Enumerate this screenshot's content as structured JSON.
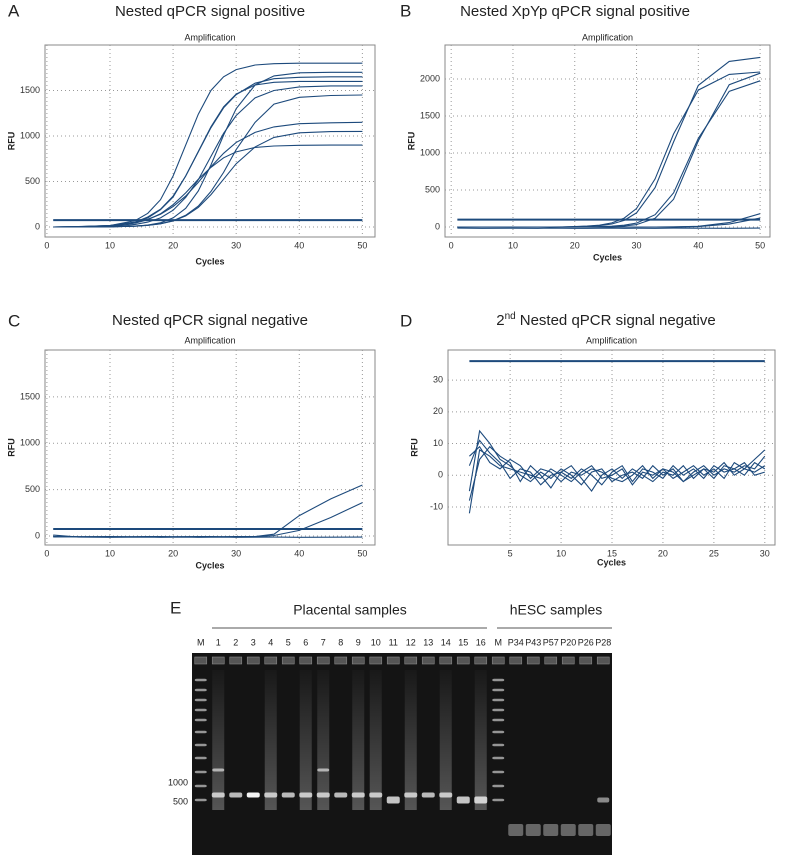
{
  "chart_data": [
    {
      "type": "line",
      "panel": "A",
      "title": "Nested qPCR signal positive",
      "subtitle": "Amplification",
      "x_label": "Cycles",
      "y_label": "RFU",
      "color": "#1d4a7c",
      "grid": true,
      "xlim": [
        -0.3,
        52
      ],
      "ylim": [
        -110,
        2000
      ],
      "xticks": [
        0,
        10,
        20,
        30,
        40,
        50
      ],
      "yticks": [
        0,
        500,
        1000,
        1500
      ],
      "threshold": 75,
      "x": [
        1,
        5,
        10,
        14,
        16,
        18,
        20,
        22,
        24,
        26,
        28,
        30,
        33,
        36,
        40,
        45,
        50
      ],
      "series": [
        {
          "values": [
            0,
            2,
            15,
            70,
            150,
            300,
            560,
            900,
            1240,
            1500,
            1650,
            1730,
            1780,
            1795,
            1800,
            1800,
            1800
          ]
        },
        {
          "values": [
            0,
            3,
            15,
            55,
            110,
            195,
            340,
            560,
            825,
            1090,
            1310,
            1455,
            1580,
            1630,
            1645,
            1650,
            1650
          ]
        },
        {
          "values": [
            0,
            1,
            7,
            28,
            54,
            100,
            185,
            325,
            520,
            775,
            1030,
            1225,
            1420,
            1500,
            1540,
            1550,
            1550
          ]
        },
        {
          "values": [
            0,
            4,
            15,
            50,
            85,
            140,
            225,
            340,
            490,
            660,
            810,
            930,
            1040,
            1100,
            1135,
            1145,
            1150
          ]
        },
        {
          "values": [
            0,
            2,
            12,
            43,
            80,
            145,
            245,
            375,
            525,
            655,
            760,
            825,
            875,
            890,
            898,
            900,
            900
          ]
        },
        {
          "values": [
            0,
            0,
            2,
            9,
            21,
            46,
            100,
            205,
            395,
            680,
            1010,
            1300,
            1560,
            1660,
            1695,
            1700,
            1700
          ]
        },
        {
          "values": [
            0,
            0,
            2,
            10,
            19,
            36,
            69,
            128,
            230,
            390,
            600,
            850,
            1150,
            1350,
            1425,
            1445,
            1450
          ]
        },
        {
          "values": [
            0,
            0,
            3,
            10,
            19,
            35,
            66,
            122,
            215,
            355,
            525,
            695,
            880,
            985,
            1035,
            1048,
            1050
          ]
        },
        {
          "values": [
            0,
            2,
            10,
            50,
            100,
            190,
            330,
            560,
            830,
            1100,
            1320,
            1460,
            1560,
            1590,
            1600,
            1600,
            1600
          ]
        }
      ]
    },
    {
      "type": "line",
      "panel": "B",
      "title": "Nested XpYp qPCR signal positive",
      "subtitle": "Amplification",
      "x_label": "Cycles",
      "y_label": "RFU",
      "color": "#1d4a7c",
      "grid": true,
      "xlim": [
        -1,
        51.6
      ],
      "ylim": [
        -135,
        2460
      ],
      "xticks": [
        0,
        10,
        20,
        30,
        40,
        50
      ],
      "yticks": [
        0,
        500,
        1000,
        1500,
        2000
      ],
      "threshold": 100,
      "x": [
        1,
        5,
        10,
        14,
        16,
        18,
        20,
        22,
        24,
        26,
        28,
        30,
        33,
        36,
        40,
        45,
        50
      ],
      "series": [
        {
          "values": [
            0,
            0,
            0,
            0,
            0,
            2,
            5,
            12,
            25,
            56,
            120,
            250,
            650,
            1258,
            1850,
            2062,
            2095
          ]
        },
        {
          "values": [
            0,
            0,
            0,
            0,
            0,
            0,
            4,
            9,
            19,
            41,
            90,
            191,
            532,
            1150,
            1914,
            2239,
            2292
          ]
        },
        {
          "values": [
            0,
            0,
            0,
            0,
            0,
            0,
            0,
            0,
            5,
            11,
            24,
            53,
            166,
            462,
            1198,
            1834,
            1976
          ]
        },
        {
          "values": [
            0,
            0,
            0,
            0,
            0,
            0,
            0,
            0,
            0,
            6,
            14,
            33,
            118,
            376,
            1164,
            1924,
            2079
          ]
        },
        {
          "values": [
            0,
            0,
            0,
            0,
            0,
            0,
            0,
            0,
            0,
            0,
            0,
            0,
            0,
            2,
            10,
            60,
            180
          ]
        },
        {
          "values": [
            0,
            0,
            0,
            0,
            0,
            0,
            0,
            0,
            0,
            0,
            0,
            0,
            0,
            1,
            5,
            40,
            120
          ]
        },
        {
          "values": [
            -15,
            -18,
            -16,
            -17,
            -15,
            -16,
            -18,
            -17,
            -16,
            -15,
            -17,
            -16,
            -18,
            -15,
            -16,
            -17,
            -15
          ]
        }
      ]
    },
    {
      "type": "line",
      "panel": "C",
      "title": "Nested qPCR signal negative",
      "subtitle": "Amplification",
      "x_label": "Cycles",
      "y_label": "RFU",
      "color": "#1d4a7c",
      "grid": true,
      "xlim": [
        -0.3,
        52
      ],
      "ylim": [
        -97,
        2006
      ],
      "xticks": [
        0,
        10,
        20,
        30,
        40,
        50
      ],
      "yticks": [
        0,
        500,
        1000,
        1500
      ],
      "threshold": 75,
      "x": [
        1,
        5,
        10,
        14,
        16,
        18,
        20,
        22,
        24,
        26,
        28,
        30,
        33,
        36,
        40,
        45,
        50
      ],
      "series": [
        {
          "values": [
            -5,
            -8,
            -6,
            -7,
            -5,
            -6,
            -8,
            -7,
            -6,
            -5,
            -7,
            -6,
            -5,
            20,
            220,
            400,
            550
          ]
        },
        {
          "values": [
            -10,
            -9,
            -11,
            -10,
            -9,
            -10,
            -11,
            -9,
            -10,
            -11,
            -10,
            -9,
            -8,
            5,
            60,
            200,
            360
          ]
        },
        {
          "values": [
            10,
            -12,
            -14,
            -13,
            -12,
            -14,
            -13,
            -12,
            -14,
            -13,
            -12,
            -14,
            -13,
            -12,
            -14,
            -13,
            -12
          ]
        }
      ]
    },
    {
      "type": "line",
      "panel": "D",
      "title_prefix": "2",
      "title_superscript": "nd",
      "title": "Nested qPCR signal negative",
      "subtitle": "Amplification",
      "x_label": "Cycles",
      "y_label": "RFU",
      "color": "#1d4a7c",
      "grid": true,
      "xlim": [
        -1.1,
        31
      ],
      "ylim": [
        -22,
        39.5
      ],
      "xticks": [
        5,
        10,
        15,
        20,
        25,
        30
      ],
      "yticks": [
        -10,
        0,
        10,
        20,
        30
      ],
      "threshold": 36,
      "x": [
        1,
        2,
        3,
        4,
        5,
        6,
        7,
        8,
        9,
        10,
        11,
        12,
        13,
        14,
        15,
        16,
        17,
        18,
        19,
        20,
        21,
        22,
        23,
        24,
        25,
        26,
        27,
        28,
        29,
        30
      ],
      "series": [
        {
          "values": [
            -12,
            8,
            6,
            3,
            2,
            1,
            0,
            -1,
            2,
            0,
            -2,
            1,
            3,
            -1,
            0,
            2,
            -3,
            1,
            0,
            2,
            -1,
            1,
            3,
            0,
            2,
            -1,
            4,
            2,
            5,
            8
          ]
        },
        {
          "values": [
            -5,
            14,
            10,
            5,
            3,
            0,
            -2,
            1,
            -1,
            2,
            0,
            -3,
            1,
            2,
            -2,
            0,
            1,
            -1,
            3,
            0,
            2,
            -2,
            1,
            3,
            0,
            2,
            1,
            3,
            2,
            6
          ]
        },
        {
          "values": [
            3,
            11,
            7,
            4,
            -1,
            2,
            1,
            -3,
            0,
            1,
            3,
            -1,
            -5,
            0,
            2,
            -1,
            2,
            0,
            -2,
            1,
            0,
            3,
            -1,
            2,
            1,
            4,
            0,
            2,
            1,
            3
          ]
        },
        {
          "values": [
            -8,
            5,
            9,
            6,
            4,
            -2,
            3,
            0,
            -4,
            1,
            -1,
            2,
            0,
            -3,
            1,
            3,
            -2,
            2,
            1,
            -1,
            3,
            0,
            2,
            -1,
            3,
            1,
            2,
            4,
            0,
            1
          ]
        },
        {
          "values": [
            6,
            9,
            4,
            2,
            5,
            3,
            -1,
            2,
            1,
            -2,
            1,
            0,
            2,
            1,
            -1,
            -2,
            0,
            3,
            -1,
            2,
            1,
            -2,
            0,
            2,
            -1,
            3,
            2,
            0,
            4,
            2
          ]
        }
      ]
    }
  ],
  "gel": {
    "panel": "E",
    "title_left": "Placental samples",
    "title_right": "hESC samples",
    "lanes": [
      "M",
      "1",
      "2",
      "3",
      "4",
      "5",
      "6",
      "7",
      "8",
      "9",
      "10",
      "11",
      "12",
      "13",
      "14",
      "15",
      "16",
      "M",
      "P34",
      "P43",
      "P57",
      "P20",
      "P26",
      "P28"
    ],
    "size_labels": [
      "1000",
      "500"
    ]
  }
}
